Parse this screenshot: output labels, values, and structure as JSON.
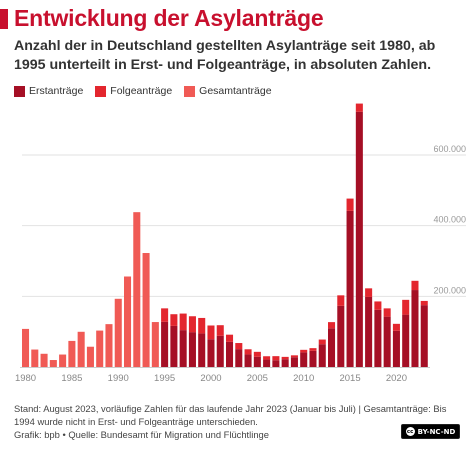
{
  "header": {
    "title": "Entwicklung der Asylanträge",
    "subtitle": "Anzahl der in Deutschland gestellten Asylanträge seit 1980, ab 1995 unterteilt in Erst- und Folgeanträge, in absoluten Zahlen."
  },
  "colors": {
    "brand": "#c8102e",
    "erst": "#a50f25",
    "folge": "#e3262e",
    "gesamt": "#f05a55"
  },
  "legend": [
    {
      "label": "Erstanträge",
      "color": "#a50f25"
    },
    {
      "label": "Folgeanträge",
      "color": "#e3262e"
    },
    {
      "label": "Gesamtanträge",
      "color": "#f05a55"
    }
  ],
  "chart_data": {
    "type": "bar",
    "stacked": true,
    "title": "Entwicklung der Asylanträge",
    "xlabel": "",
    "ylabel": "",
    "ylim": [
      0,
      750000
    ],
    "y_ticks": [
      200000,
      400000,
      600000
    ],
    "y_tick_labels": [
      "200.000",
      "400.000",
      "600.000"
    ],
    "x_tick_labels": [
      "1980",
      "1985",
      "1990",
      "1995",
      "2000",
      "2005",
      "2010",
      "2015",
      "2020"
    ],
    "grid": "horizontal",
    "legend_position": "top-left",
    "series": [
      {
        "name": "Gesamtanträge",
        "x": [
          1980,
          1981,
          1982,
          1983,
          1984,
          1985,
          1986,
          1987,
          1988,
          1989,
          1990,
          1991,
          1992,
          1993,
          1994
        ],
        "values": [
          107818,
          49391,
          37423,
          19737,
          35278,
          73832,
          99650,
          57379,
          103076,
          121318,
          193063,
          256112,
          438191,
          322599,
          127210
        ]
      },
      {
        "name": "Erstanträge",
        "x": [
          1995,
          1996,
          1997,
          1998,
          1999,
          2000,
          2001,
          2002,
          2003,
          2004,
          2005,
          2006,
          2007,
          2008,
          2009,
          2010,
          2011,
          2012,
          2013,
          2014,
          2015,
          2016,
          2017,
          2018,
          2019,
          2020,
          2021,
          2022,
          2023
        ],
        "values": [
          127937,
          116367,
          104353,
          98644,
          95113,
          78564,
          88287,
          71127,
          50563,
          35607,
          28914,
          21029,
          19164,
          22085,
          27649,
          41332,
          45741,
          64539,
          109580,
          173072,
          441899,
          722370,
          198317,
          161931,
          142509,
          102581,
          148233,
          217774,
          175000
        ]
      },
      {
        "name": "Folgeanträge",
        "x": [
          1995,
          1996,
          1997,
          1998,
          1999,
          2000,
          2001,
          2002,
          2003,
          2004,
          2005,
          2006,
          2007,
          2008,
          2009,
          2010,
          2011,
          2012,
          2013,
          2014,
          2015,
          2016,
          2017,
          2018,
          2019,
          2020,
          2021,
          2022,
          2023
        ],
        "values": [
          38014,
          33022,
          46873,
          44989,
          43729,
          38920,
          30019,
          20344,
          17285,
          14545,
          13994,
          9398,
          11527,
          6564,
          5384,
          7257,
          7606,
          13158,
          17434,
          29762,
          34750,
          23175,
          24313,
          23622,
          23429,
          19581,
          41831,
          26174,
          12000
        ]
      }
    ]
  },
  "notes": {
    "footnote": "Stand: August 2023, vorläufige Zahlen für das laufende Jahr 2023 (Januar bis Juli) | Gesamtanträge: Bis 1994 wurde nicht in Erst- und Folgeanträge unterschieden.",
    "source": "Grafik: bpb • Quelle: Bundesamt für Migration und Flüchtlinge",
    "license": "BY-NC-ND",
    "license_icon": "cc"
  }
}
